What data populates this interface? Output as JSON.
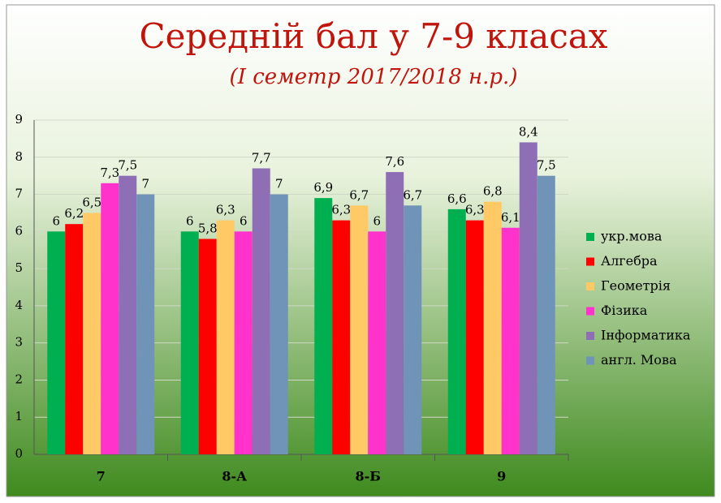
{
  "chart_data": {
    "type": "bar",
    "title": "Середній бал у 7-9 класах",
    "subtitle": "(I семетр 2017/2018 н.р.)",
    "categories": [
      "7",
      "8-А",
      "8-Б",
      "9"
    ],
    "series": [
      {
        "name": "укр.мова",
        "color": "#00b050",
        "values": [
          6,
          6,
          6.9,
          6.6
        ],
        "value_labels": [
          "6",
          "6",
          "6,9",
          "6,6"
        ]
      },
      {
        "name": "Алгебра",
        "color": "#ff0000",
        "values": [
          6.2,
          5.8,
          6.3,
          6.3
        ],
        "value_labels": [
          "6,2",
          "5,8",
          "6,3",
          "6,3"
        ]
      },
      {
        "name": "Геометрія",
        "color": "#ffc966",
        "values": [
          6.5,
          6.3,
          6.7,
          6.8
        ],
        "value_labels": [
          "6,5",
          "6,3",
          "6,7",
          "6,8"
        ]
      },
      {
        "name": "Фізика",
        "color": "#ff33cc",
        "values": [
          7.3,
          6,
          6,
          6.1
        ],
        "value_labels": [
          "7,3",
          "6",
          "6",
          "6,1"
        ]
      },
      {
        "name": "Інформатика",
        "color": "#8e6fb5",
        "values": [
          7.5,
          7.7,
          7.6,
          8.4
        ],
        "value_labels": [
          "7,5",
          "7,7",
          "7,6",
          "8,4"
        ]
      },
      {
        "name": "англ. Мова",
        "color": "#7094b8",
        "values": [
          7,
          7,
          6.7,
          7.5
        ],
        "value_labels": [
          "7",
          "7",
          "6,7",
          "7,5"
        ]
      }
    ],
    "ylim": [
      0,
      9
    ],
    "yticks": [
      0,
      1,
      2,
      3,
      4,
      5,
      6,
      7,
      8,
      9
    ],
    "grid": true,
    "legend": "right"
  }
}
